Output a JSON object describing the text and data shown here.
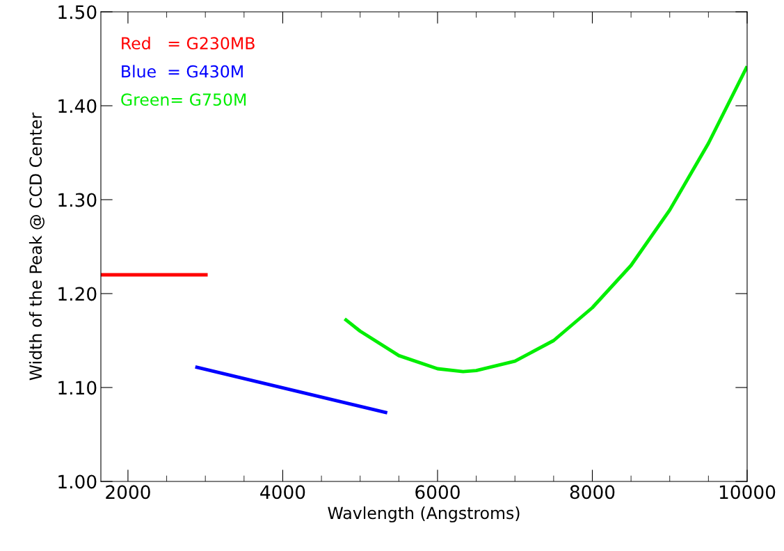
{
  "chart_data": {
    "type": "line",
    "xlabel": "Wavlength (Angstroms)",
    "ylabel": "Width of the Peak @ CCD Center",
    "xlim": [
      1650,
      10000
    ],
    "xticks": [
      2000,
      4000,
      6000,
      8000,
      10000
    ],
    "ylim": [
      1.0,
      1.5
    ],
    "yticks": [
      {
        "value": 1.0,
        "label": "1.00"
      },
      {
        "value": 1.1,
        "label": "1.10"
      },
      {
        "value": 1.2,
        "label": "1.20"
      },
      {
        "value": 1.3,
        "label": "1.30"
      },
      {
        "value": 1.4,
        "label": "1.40"
      },
      {
        "value": 1.5,
        "label": "1.50"
      }
    ],
    "grid": false,
    "legend": "top left",
    "marker": "none",
    "line_style": "solid",
    "series": [
      {
        "name": "Red   = G230MB",
        "color": "#ff0000",
        "x": [
          1650,
          3030
        ],
        "values": [
          1.22,
          1.22
        ]
      },
      {
        "name": "Blue  = G430M",
        "color": "#0000ff",
        "x": [
          2870,
          5350
        ],
        "values": [
          1.122,
          1.073
        ]
      },
      {
        "name": "Green= G750M",
        "color": "#00ee00",
        "x": [
          4800,
          5000,
          5500,
          6000,
          6330,
          6500,
          7000,
          7500,
          8000,
          8500,
          9000,
          9500,
          10000
        ],
        "values": [
          1.173,
          1.16,
          1.134,
          1.12,
          1.117,
          1.118,
          1.128,
          1.15,
          1.185,
          1.23,
          1.289,
          1.36,
          1.442
        ]
      }
    ]
  }
}
